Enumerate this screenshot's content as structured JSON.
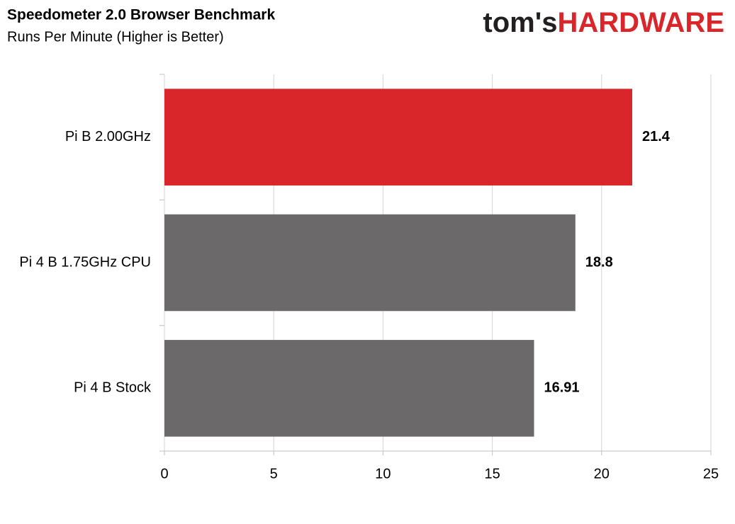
{
  "brand": {
    "name": "tom's",
    "accent": "HARDWARE"
  },
  "chart_data": {
    "type": "hbar",
    "title": "Speedometer 2.0 Browser Benchmark",
    "subtitle": "Runs Per Minute (Higher is Better)",
    "categories": [
      "Pi B 2.00GHz",
      "Pi 4 B 1.75GHz CPU",
      "Pi 4 B Stock"
    ],
    "values": [
      21.4,
      18.8,
      16.91
    ],
    "colors": [
      "#d9262b",
      "#6b6969",
      "#6b6969"
    ],
    "xlim": [
      0,
      25
    ],
    "xticks": [
      0,
      5,
      10,
      15,
      20,
      25
    ],
    "grid": true
  }
}
